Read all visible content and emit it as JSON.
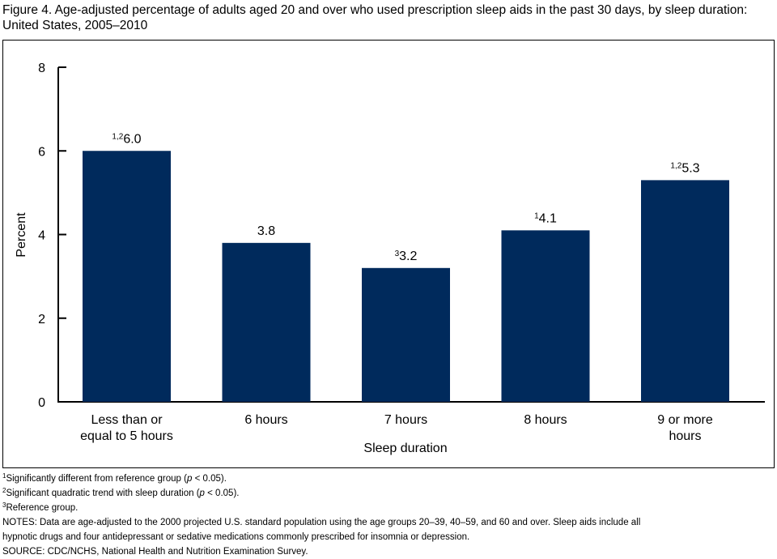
{
  "chart_data": {
    "type": "bar",
    "title": "Figure 4. Age-adjusted percentage of adults aged 20 and over who used prescription sleep aids in the past 30 days, by sleep duration: United States, 2005–2010",
    "xlabel": "Sleep duration",
    "ylabel": "Percent",
    "ylim": [
      0,
      8
    ],
    "yticks": [
      "0",
      "2",
      "4",
      "6",
      "8"
    ],
    "grid": false,
    "categories": [
      [
        "Less than or",
        "equal to 5 hours"
      ],
      [
        "6 hours"
      ],
      [
        "7 hours"
      ],
      [
        "8 hours"
      ],
      [
        "9 or more",
        "hours"
      ]
    ],
    "values": [
      6.0,
      3.8,
      3.2,
      4.1,
      5.3
    ],
    "data_labels": [
      "6.0",
      "3.8",
      "3.2",
      "4.1",
      "5.3"
    ],
    "label_superscripts": [
      "1,2",
      "",
      "3",
      "1",
      "1,2"
    ],
    "bar_color": "#002a5c"
  },
  "footnotes": [
    {
      "sup": "1",
      "pre": "Significantly different from reference group (",
      "p": "p",
      "post": " < 0.05)."
    },
    {
      "sup": "2",
      "pre": "Significant quadratic trend with sleep duration (",
      "p": "p",
      "post": " < 0.05)."
    },
    {
      "sup": "3",
      "pre": "Reference group.",
      "p": "",
      "post": ""
    }
  ],
  "notes": [
    "NOTES: Data are age-adjusted to the 2000 projected U.S. standard population using the age groups 20–39, 40–59, and 60 and over. Sleep aids include all",
    "hypnotic drugs and four antidepressant or sedative medications commonly prescribed for insomnia or depression."
  ],
  "source": "SOURCE: CDC/NCHS, National Health and Nutrition Examination Survey."
}
